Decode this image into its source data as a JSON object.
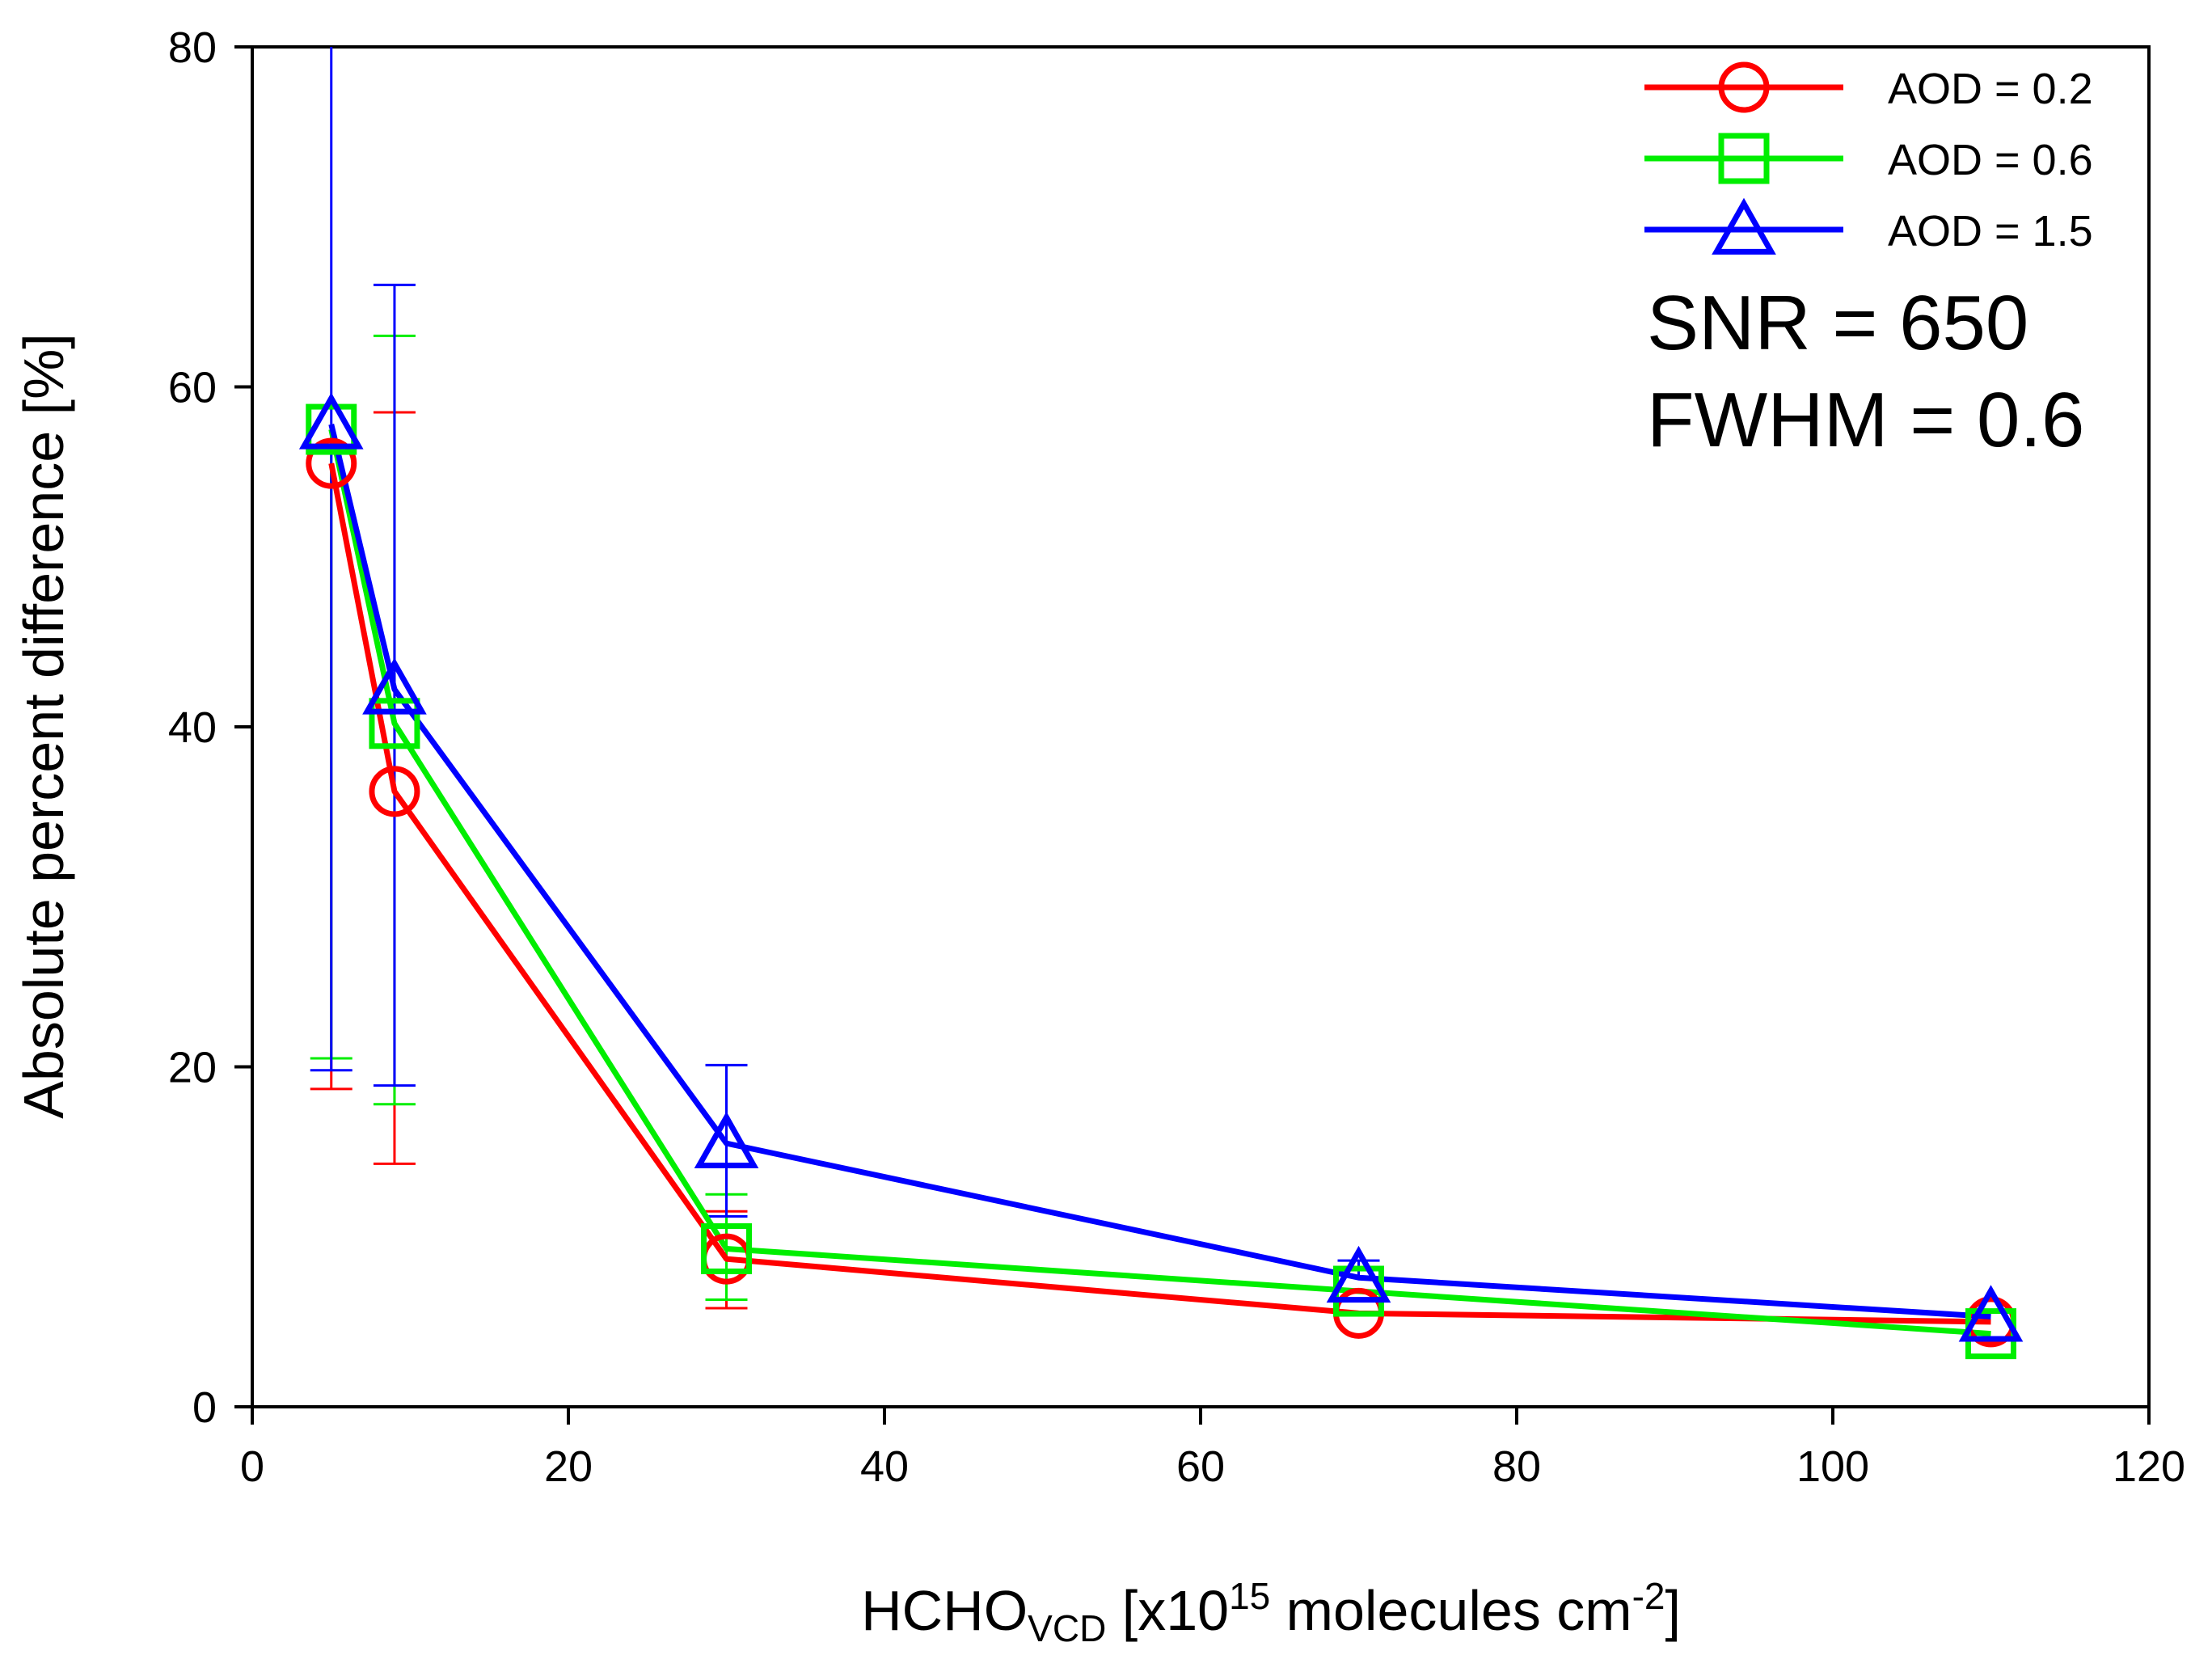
{
  "chart_data": {
    "type": "line",
    "title": "",
    "xlabel": {
      "main": "HCHO",
      "sub": "VCD",
      "mid": " [x10",
      "sup": "15",
      "rest": " molecules cm",
      "sup2": "-2",
      "end": "]"
    },
    "ylabel": "Absolute percent difference [%]",
    "xlim": [
      0,
      120
    ],
    "ylim": [
      0,
      80
    ],
    "x_ticks": [
      0,
      20,
      40,
      60,
      80,
      100,
      120
    ],
    "y_ticks": [
      0,
      20,
      40,
      60,
      80
    ],
    "x_tick_labels": [
      "0",
      "20",
      "40",
      "60",
      "80",
      "100",
      "120"
    ],
    "y_tick_labels": [
      "0",
      "20",
      "40",
      "60",
      "80"
    ],
    "grid": false,
    "legend_position": "top-right",
    "annotations": [
      "SNR = 650",
      "FWHM = 0.6"
    ],
    "series": [
      {
        "name": "AOD = 0.2",
        "color": "#ff0000",
        "marker": "circle",
        "x": [
          5,
          9,
          30,
          70,
          110
        ],
        "y": [
          55.5,
          36.2,
          8.7,
          5.5,
          5.0
        ],
        "err_low": [
          18.7,
          14.3,
          5.8,
          null,
          null
        ],
        "err_high": [
          null,
          58.5,
          11.5,
          null,
          null
        ]
      },
      {
        "name": "AOD = 0.6",
        "color": "#00ee00",
        "marker": "square",
        "x": [
          5,
          9,
          30,
          70,
          110
        ],
        "y": [
          57.5,
          40.2,
          9.3,
          6.8,
          4.3
        ],
        "err_low": [
          20.5,
          17.8,
          6.3,
          null,
          null
        ],
        "err_high": [
          null,
          63.0,
          12.5,
          null,
          null
        ]
      },
      {
        "name": "AOD = 1.5",
        "color": "#0000ff",
        "marker": "triangle",
        "x": [
          5,
          9,
          30,
          70,
          110
        ],
        "y": [
          57.8,
          42.2,
          15.5,
          7.6,
          5.3
        ],
        "err_low": [
          19.8,
          18.9,
          11.2,
          null,
          null
        ],
        "err_high": [
          80,
          66.0,
          20.1,
          8.6,
          null
        ]
      }
    ]
  }
}
